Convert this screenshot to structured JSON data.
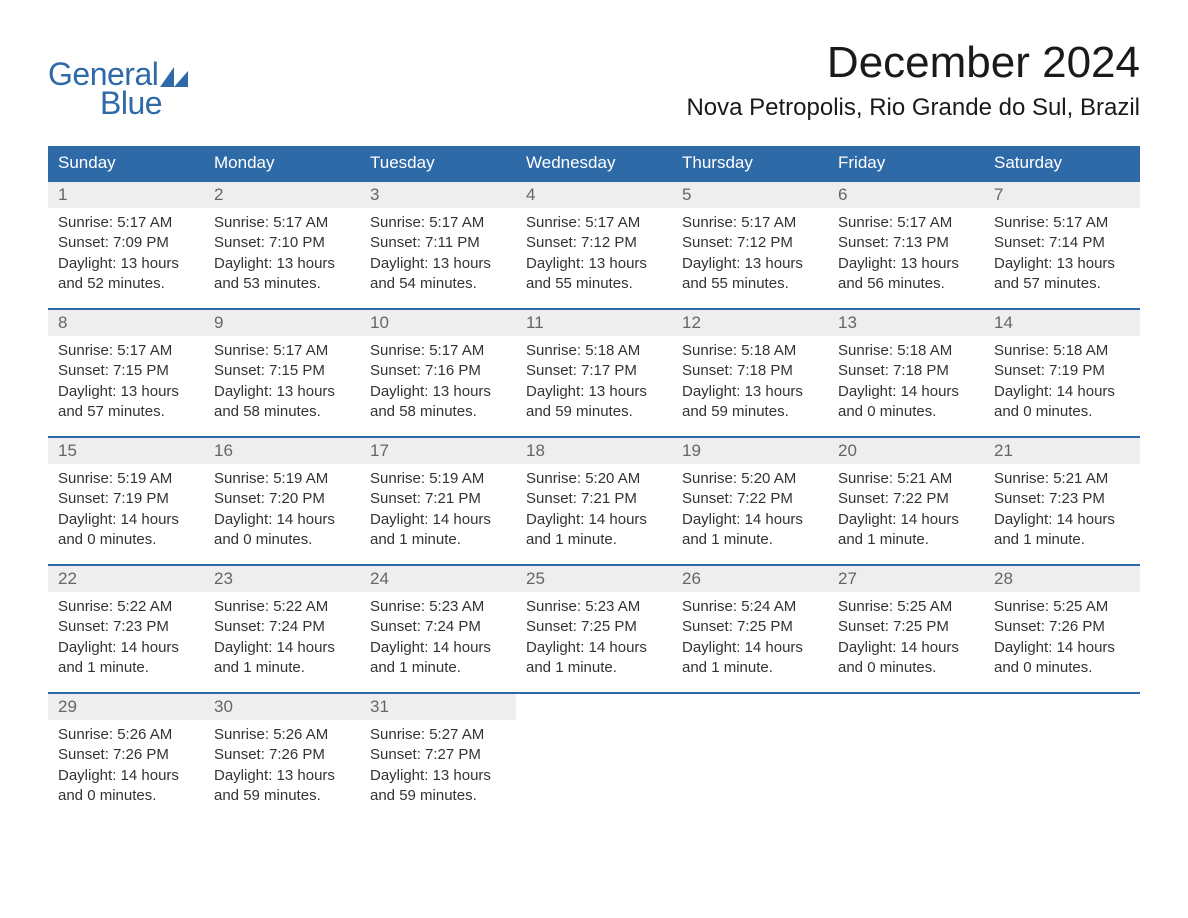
{
  "brand": {
    "line1": "General",
    "line2": "Blue",
    "logo_color": "#2f6aa8"
  },
  "title": "December 2024",
  "location": "Nova Petropolis, Rio Grande do Sul, Brazil",
  "colors": {
    "header_bg": "#2f6aa8",
    "header_text": "#ffffff",
    "daynum_bg": "#eeeeee",
    "daynum_text": "#666666",
    "body_text": "#333333",
    "border": "#2f6aa8",
    "background": "#ffffff"
  },
  "typography": {
    "title_fontsize": 44,
    "location_fontsize": 24,
    "header_fontsize": 17,
    "daynum_fontsize": 17,
    "content_fontsize": 15
  },
  "day_headers": [
    "Sunday",
    "Monday",
    "Tuesday",
    "Wednesday",
    "Thursday",
    "Friday",
    "Saturday"
  ],
  "weeks": [
    [
      {
        "n": "1",
        "sr": "Sunrise: 5:17 AM",
        "ss": "Sunset: 7:09 PM",
        "d1": "Daylight: 13 hours",
        "d2": "and 52 minutes."
      },
      {
        "n": "2",
        "sr": "Sunrise: 5:17 AM",
        "ss": "Sunset: 7:10 PM",
        "d1": "Daylight: 13 hours",
        "d2": "and 53 minutes."
      },
      {
        "n": "3",
        "sr": "Sunrise: 5:17 AM",
        "ss": "Sunset: 7:11 PM",
        "d1": "Daylight: 13 hours",
        "d2": "and 54 minutes."
      },
      {
        "n": "4",
        "sr": "Sunrise: 5:17 AM",
        "ss": "Sunset: 7:12 PM",
        "d1": "Daylight: 13 hours",
        "d2": "and 55 minutes."
      },
      {
        "n": "5",
        "sr": "Sunrise: 5:17 AM",
        "ss": "Sunset: 7:12 PM",
        "d1": "Daylight: 13 hours",
        "d2": "and 55 minutes."
      },
      {
        "n": "6",
        "sr": "Sunrise: 5:17 AM",
        "ss": "Sunset: 7:13 PM",
        "d1": "Daylight: 13 hours",
        "d2": "and 56 minutes."
      },
      {
        "n": "7",
        "sr": "Sunrise: 5:17 AM",
        "ss": "Sunset: 7:14 PM",
        "d1": "Daylight: 13 hours",
        "d2": "and 57 minutes."
      }
    ],
    [
      {
        "n": "8",
        "sr": "Sunrise: 5:17 AM",
        "ss": "Sunset: 7:15 PM",
        "d1": "Daylight: 13 hours",
        "d2": "and 57 minutes."
      },
      {
        "n": "9",
        "sr": "Sunrise: 5:17 AM",
        "ss": "Sunset: 7:15 PM",
        "d1": "Daylight: 13 hours",
        "d2": "and 58 minutes."
      },
      {
        "n": "10",
        "sr": "Sunrise: 5:17 AM",
        "ss": "Sunset: 7:16 PM",
        "d1": "Daylight: 13 hours",
        "d2": "and 58 minutes."
      },
      {
        "n": "11",
        "sr": "Sunrise: 5:18 AM",
        "ss": "Sunset: 7:17 PM",
        "d1": "Daylight: 13 hours",
        "d2": "and 59 minutes."
      },
      {
        "n": "12",
        "sr": "Sunrise: 5:18 AM",
        "ss": "Sunset: 7:18 PM",
        "d1": "Daylight: 13 hours",
        "d2": "and 59 minutes."
      },
      {
        "n": "13",
        "sr": "Sunrise: 5:18 AM",
        "ss": "Sunset: 7:18 PM",
        "d1": "Daylight: 14 hours",
        "d2": "and 0 minutes."
      },
      {
        "n": "14",
        "sr": "Sunrise: 5:18 AM",
        "ss": "Sunset: 7:19 PM",
        "d1": "Daylight: 14 hours",
        "d2": "and 0 minutes."
      }
    ],
    [
      {
        "n": "15",
        "sr": "Sunrise: 5:19 AM",
        "ss": "Sunset: 7:19 PM",
        "d1": "Daylight: 14 hours",
        "d2": "and 0 minutes."
      },
      {
        "n": "16",
        "sr": "Sunrise: 5:19 AM",
        "ss": "Sunset: 7:20 PM",
        "d1": "Daylight: 14 hours",
        "d2": "and 0 minutes."
      },
      {
        "n": "17",
        "sr": "Sunrise: 5:19 AM",
        "ss": "Sunset: 7:21 PM",
        "d1": "Daylight: 14 hours",
        "d2": "and 1 minute."
      },
      {
        "n": "18",
        "sr": "Sunrise: 5:20 AM",
        "ss": "Sunset: 7:21 PM",
        "d1": "Daylight: 14 hours",
        "d2": "and 1 minute."
      },
      {
        "n": "19",
        "sr": "Sunrise: 5:20 AM",
        "ss": "Sunset: 7:22 PM",
        "d1": "Daylight: 14 hours",
        "d2": "and 1 minute."
      },
      {
        "n": "20",
        "sr": "Sunrise: 5:21 AM",
        "ss": "Sunset: 7:22 PM",
        "d1": "Daylight: 14 hours",
        "d2": "and 1 minute."
      },
      {
        "n": "21",
        "sr": "Sunrise: 5:21 AM",
        "ss": "Sunset: 7:23 PM",
        "d1": "Daylight: 14 hours",
        "d2": "and 1 minute."
      }
    ],
    [
      {
        "n": "22",
        "sr": "Sunrise: 5:22 AM",
        "ss": "Sunset: 7:23 PM",
        "d1": "Daylight: 14 hours",
        "d2": "and 1 minute."
      },
      {
        "n": "23",
        "sr": "Sunrise: 5:22 AM",
        "ss": "Sunset: 7:24 PM",
        "d1": "Daylight: 14 hours",
        "d2": "and 1 minute."
      },
      {
        "n": "24",
        "sr": "Sunrise: 5:23 AM",
        "ss": "Sunset: 7:24 PM",
        "d1": "Daylight: 14 hours",
        "d2": "and 1 minute."
      },
      {
        "n": "25",
        "sr": "Sunrise: 5:23 AM",
        "ss": "Sunset: 7:25 PM",
        "d1": "Daylight: 14 hours",
        "d2": "and 1 minute."
      },
      {
        "n": "26",
        "sr": "Sunrise: 5:24 AM",
        "ss": "Sunset: 7:25 PM",
        "d1": "Daylight: 14 hours",
        "d2": "and 1 minute."
      },
      {
        "n": "27",
        "sr": "Sunrise: 5:25 AM",
        "ss": "Sunset: 7:25 PM",
        "d1": "Daylight: 14 hours",
        "d2": "and 0 minutes."
      },
      {
        "n": "28",
        "sr": "Sunrise: 5:25 AM",
        "ss": "Sunset: 7:26 PM",
        "d1": "Daylight: 14 hours",
        "d2": "and 0 minutes."
      }
    ],
    [
      {
        "n": "29",
        "sr": "Sunrise: 5:26 AM",
        "ss": "Sunset: 7:26 PM",
        "d1": "Daylight: 14 hours",
        "d2": "and 0 minutes."
      },
      {
        "n": "30",
        "sr": "Sunrise: 5:26 AM",
        "ss": "Sunset: 7:26 PM",
        "d1": "Daylight: 13 hours",
        "d2": "and 59 minutes."
      },
      {
        "n": "31",
        "sr": "Sunrise: 5:27 AM",
        "ss": "Sunset: 7:27 PM",
        "d1": "Daylight: 13 hours",
        "d2": "and 59 minutes."
      },
      null,
      null,
      null,
      null
    ]
  ]
}
